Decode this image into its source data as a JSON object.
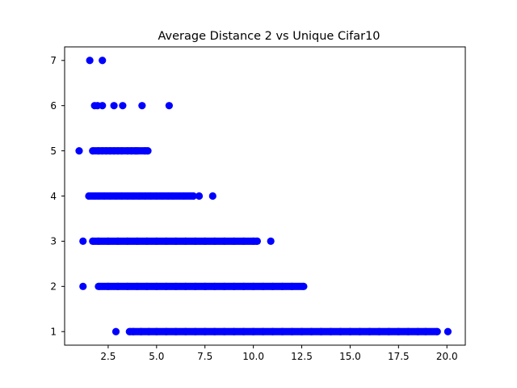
{
  "chart_data": {
    "type": "scatter",
    "title": "Average Distance 2 vs Unique Cifar10",
    "xlabel": "",
    "ylabel": "",
    "xlim": [
      0.25,
      20.95
    ],
    "ylim": [
      0.7,
      7.3
    ],
    "x_ticks": [
      "2.5",
      "5.0",
      "7.5",
      "10.0",
      "12.5",
      "15.0",
      "17.5",
      "20.0"
    ],
    "y_ticks": [
      "1",
      "2",
      "3",
      "4",
      "5",
      "6",
      "7"
    ],
    "grid": false,
    "marker_color": "#0000ff",
    "series": [
      {
        "values": [
          [
            1.55,
            7
          ],
          [
            2.2,
            7
          ],
          [
            1.8,
            6
          ],
          [
            1.95,
            6
          ],
          [
            2.2,
            6
          ],
          [
            2.8,
            6
          ],
          [
            3.25,
            6
          ],
          [
            4.25,
            6
          ],
          [
            5.65,
            6
          ],
          [
            1.0,
            5
          ],
          [
            1.7,
            5
          ],
          [
            2.0,
            5
          ],
          [
            2.2,
            5
          ],
          [
            2.4,
            5
          ],
          [
            2.6,
            5
          ],
          [
            2.8,
            5
          ],
          [
            3.0,
            5
          ],
          [
            3.2,
            5
          ],
          [
            3.5,
            5
          ],
          [
            3.7,
            5
          ],
          [
            3.9,
            5
          ],
          [
            4.0,
            5
          ],
          [
            4.4,
            5
          ],
          [
            4.55,
            5
          ],
          [
            1.5,
            4
          ],
          [
            1.8,
            4
          ],
          [
            2.0,
            4
          ],
          [
            2.3,
            4
          ],
          [
            2.6,
            4
          ],
          [
            2.9,
            4
          ],
          [
            3.2,
            4
          ],
          [
            3.5,
            4
          ],
          [
            3.8,
            4
          ],
          [
            4.1,
            4
          ],
          [
            4.4,
            4
          ],
          [
            4.7,
            4
          ],
          [
            5.0,
            4
          ],
          [
            5.3,
            4
          ],
          [
            5.6,
            4
          ],
          [
            5.85,
            4
          ],
          [
            6.4,
            4
          ],
          [
            6.9,
            4
          ],
          [
            7.2,
            4
          ],
          [
            7.9,
            4
          ],
          [
            1.2,
            3
          ],
          [
            1.7,
            3
          ],
          [
            2.0,
            3
          ],
          [
            2.5,
            3
          ],
          [
            3.0,
            3
          ],
          [
            3.5,
            3
          ],
          [
            4.0,
            3
          ],
          [
            4.5,
            3
          ],
          [
            5.0,
            3
          ],
          [
            5.5,
            3
          ],
          [
            6.0,
            3
          ],
          [
            6.5,
            3
          ],
          [
            7.0,
            3
          ],
          [
            7.5,
            3
          ],
          [
            8.0,
            3
          ],
          [
            8.5,
            3
          ],
          [
            9.0,
            3
          ],
          [
            9.5,
            3
          ],
          [
            10.0,
            3
          ],
          [
            10.2,
            3
          ],
          [
            10.9,
            3
          ],
          [
            1.2,
            2
          ],
          [
            2.0,
            2
          ],
          [
            2.5,
            2
          ],
          [
            3.0,
            2
          ],
          [
            3.5,
            2
          ],
          [
            4.0,
            2
          ],
          [
            4.5,
            2
          ],
          [
            5.0,
            2
          ],
          [
            5.5,
            2
          ],
          [
            6.0,
            2
          ],
          [
            6.5,
            2
          ],
          [
            7.0,
            2
          ],
          [
            7.5,
            2
          ],
          [
            8.0,
            2
          ],
          [
            8.5,
            2
          ],
          [
            9.0,
            2
          ],
          [
            9.5,
            2
          ],
          [
            10.0,
            2
          ],
          [
            10.5,
            2
          ],
          [
            11.0,
            2
          ],
          [
            11.5,
            2
          ],
          [
            12.0,
            2
          ],
          [
            12.6,
            2
          ],
          [
            2.9,
            1
          ],
          [
            3.6,
            1
          ],
          [
            3.8,
            1
          ],
          [
            4.2,
            1
          ],
          [
            4.6,
            1
          ],
          [
            5.0,
            1
          ],
          [
            5.5,
            1
          ],
          [
            6.0,
            1
          ],
          [
            6.5,
            1
          ],
          [
            7.0,
            1
          ],
          [
            7.5,
            1
          ],
          [
            8.0,
            1
          ],
          [
            8.5,
            1
          ],
          [
            9.0,
            1
          ],
          [
            9.5,
            1
          ],
          [
            10.0,
            1
          ],
          [
            10.5,
            1
          ],
          [
            11.0,
            1
          ],
          [
            11.5,
            1
          ],
          [
            12.0,
            1
          ],
          [
            12.5,
            1
          ],
          [
            13.0,
            1
          ],
          [
            13.5,
            1
          ],
          [
            14.0,
            1
          ],
          [
            14.5,
            1
          ],
          [
            15.0,
            1
          ],
          [
            15.5,
            1
          ],
          [
            16.0,
            1
          ],
          [
            16.5,
            1
          ],
          [
            17.0,
            1
          ],
          [
            17.5,
            1
          ],
          [
            18.0,
            1
          ],
          [
            18.5,
            1
          ],
          [
            18.9,
            1
          ],
          [
            19.5,
            1
          ],
          [
            20.05,
            1
          ]
        ]
      }
    ]
  }
}
